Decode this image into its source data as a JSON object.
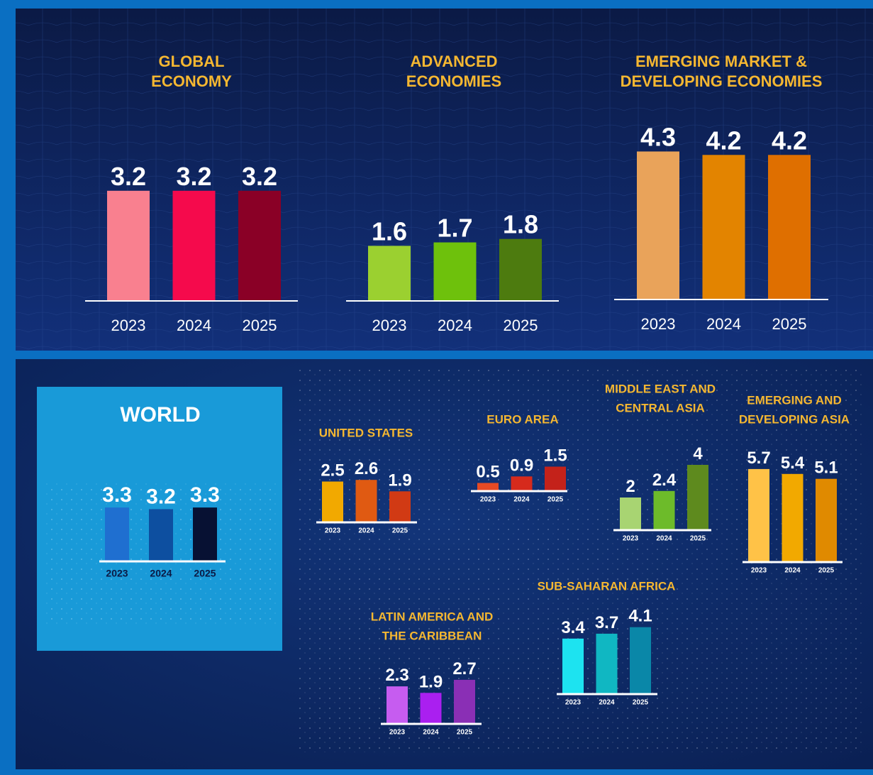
{
  "chart_data": [
    {
      "type": "bar",
      "title": [
        "GLOBAL",
        "ECONOMY"
      ],
      "categories": [
        "2023",
        "2024",
        "2025"
      ],
      "values": [
        3.2,
        3.2,
        3.2
      ],
      "colors": [
        "#f9808f",
        "#f50a4c",
        "#8a0026"
      ]
    },
    {
      "type": "bar",
      "title": [
        "ADVANCED",
        "ECONOMIES"
      ],
      "categories": [
        "2023",
        "2024",
        "2025"
      ],
      "values": [
        1.6,
        1.7,
        1.8
      ],
      "colors": [
        "#9bd030",
        "#6ec10c",
        "#4d7b0f"
      ]
    },
    {
      "type": "bar",
      "title": [
        "EMERGING MARKET &",
        "DEVELOPING ECONOMIES"
      ],
      "categories": [
        "2023",
        "2024",
        "2025"
      ],
      "values": [
        4.3,
        4.2,
        4.2
      ],
      "colors": [
        "#e9a35a",
        "#e38400",
        "#df6f00"
      ]
    },
    {
      "type": "bar",
      "title": [
        "WORLD"
      ],
      "categories": [
        "2023",
        "2024",
        "2025"
      ],
      "values": [
        3.3,
        3.2,
        3.3
      ],
      "colors": [
        "#1f6fd0",
        "#0d4fa0",
        "#071133"
      ]
    },
    {
      "type": "bar",
      "title": [
        "UNITED STATES"
      ],
      "categories": [
        "2023",
        "2024",
        "2025"
      ],
      "values": [
        2.5,
        2.6,
        1.9
      ],
      "colors": [
        "#f2a900",
        "#e05a12",
        "#d13a14"
      ]
    },
    {
      "type": "bar",
      "title": [
        "EURO AREA"
      ],
      "categories": [
        "2023",
        "2024",
        "2025"
      ],
      "values": [
        0.5,
        0.9,
        1.5
      ],
      "colors": [
        "#e54a24",
        "#d62a1c",
        "#c4221a"
      ]
    },
    {
      "type": "bar",
      "title": [
        "MIDDLE EAST AND",
        "CENTRAL ASIA"
      ],
      "categories": [
        "2023",
        "2024",
        "2025"
      ],
      "values": [
        2.0,
        2.4,
        4.0
      ],
      "colors": [
        "#a8d472",
        "#6dbb2a",
        "#5e8a1e"
      ]
    },
    {
      "type": "bar",
      "title": [
        "EMERGING AND",
        "DEVELOPING ASIA"
      ],
      "categories": [
        "2023",
        "2024",
        "2025"
      ],
      "values": [
        5.7,
        5.4,
        5.1
      ],
      "colors": [
        "#ffc247",
        "#f2a900",
        "#e08a00"
      ]
    },
    {
      "type": "bar",
      "title": [
        "SUB-SAHARAN AFRICA"
      ],
      "categories": [
        "2023",
        "2024",
        "2025"
      ],
      "values": [
        3.4,
        3.7,
        4.1
      ],
      "colors": [
        "#1de3f0",
        "#10b7c2",
        "#0a87a8"
      ]
    },
    {
      "type": "bar",
      "title": [
        "LATIN AMERICA AND",
        "THE CARIBBEAN"
      ],
      "categories": [
        "2023",
        "2024",
        "2025"
      ],
      "values": [
        2.3,
        1.9,
        2.7
      ],
      "colors": [
        "#c65cf0",
        "#aa1ff0",
        "#8a2fb5"
      ]
    }
  ]
}
